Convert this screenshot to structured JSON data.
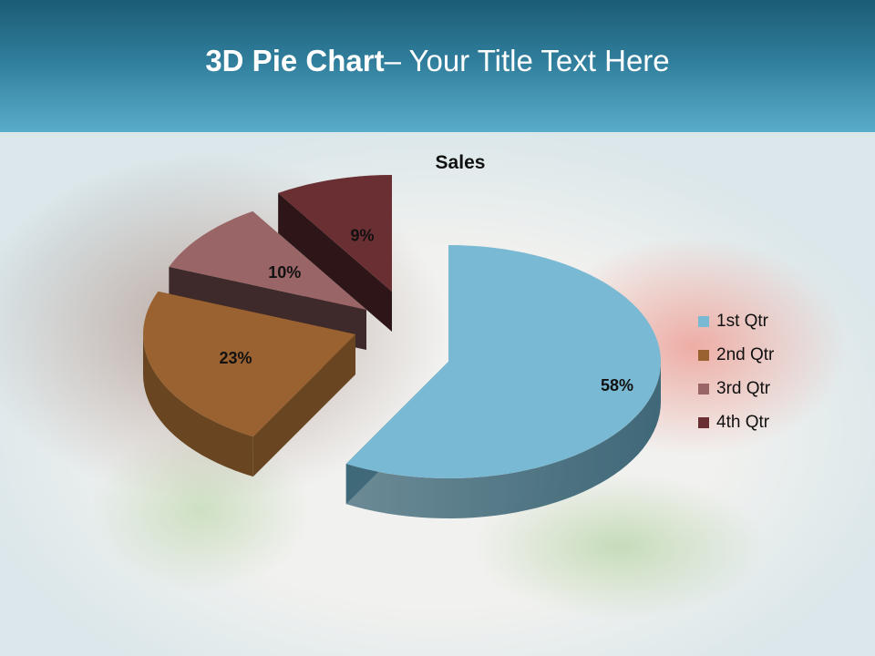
{
  "slide": {
    "title_bold": "3D Pie Chart",
    "title_rest": "– Your Title Text Here"
  },
  "chart_data": {
    "type": "pie",
    "variant": "3d-exploded",
    "title": "Sales",
    "categories": [
      "1st Qtr",
      "2nd Qtr",
      "3rd Qtr",
      "4th Qtr"
    ],
    "values": [
      58,
      23,
      10,
      9
    ],
    "labels": [
      "58%",
      "23%",
      "10%",
      "9%"
    ],
    "colors": [
      "#7ab9d4",
      "#9a6230",
      "#9a6566",
      "#6a2f32"
    ],
    "side_colors": [
      "#3f6878",
      "#6a4521",
      "#3f2a2b",
      "#2e1517"
    ],
    "legend": "right"
  }
}
